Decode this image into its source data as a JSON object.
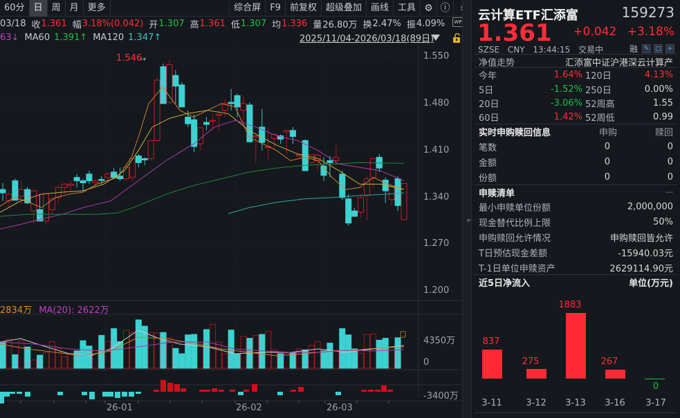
{
  "toolbar": {
    "periods": [
      "60分",
      "日",
      "周",
      "月",
      "更多"
    ],
    "active_period": "日",
    "tools": [
      "综合屏",
      "F9",
      "前复权",
      "超级叠加",
      "画线",
      "工具"
    ],
    "icons": [
      "gear-icon",
      "help-icon",
      "chevron-right-icon"
    ]
  },
  "quote_bar": {
    "date_partial": "03/18",
    "close_label": "收",
    "close": "1.361",
    "range_label": "幅",
    "range": "3.18%(0.042)",
    "open_label": "开",
    "open": "1.307",
    "high_label": "高",
    "high": "1.361",
    "low_label": "低",
    "low": "1.307",
    "avg_label": "均",
    "avg": "1.336",
    "volume_label": "量",
    "volume": "26.80万",
    "turnover_label": "换",
    "turnover": "2.47%",
    "amplitude_label": "振",
    "amplitude": "4.09%"
  },
  "ma_bar": {
    "ma_partial": "63↓",
    "ma60_label": "MA60",
    "ma60": "1.391↑",
    "ma120_label": "MA120",
    "ma120": "1.347↑",
    "date_range": "2025/11/04-2026/03/18(89日)"
  },
  "price_chart": {
    "max_marker": "1.546",
    "y_ticks": [
      "1.550",
      "1.480",
      "1.410",
      "1.340",
      "1.270",
      "1.200"
    ]
  },
  "volume_chart": {
    "ma5_partial": "2834万",
    "ma20_label": "MA(20): 2622万",
    "y_ticks": [
      "4350万",
      "0"
    ],
    "flow_tick": "-3400万"
  },
  "x_axis": {
    "labels": [
      "26-01",
      "26-02",
      "26-03"
    ]
  },
  "chart_data": {
    "type": "candlestick",
    "title": "云计算ETF汇添富 日K",
    "ylim": [
      1.2,
      1.55
    ],
    "y_ticks": [
      1.55,
      1.48,
      1.41,
      1.34,
      1.27,
      1.2
    ],
    "x_ticks": [
      "26-01",
      "26-02",
      "26-03"
    ],
    "max_annotation": 1.546,
    "last": {
      "open": 1.307,
      "high": 1.361,
      "low": 1.307,
      "close": 1.361
    }
  },
  "right_panel": {
    "name": "云计算ETF汇添富",
    "code": "159273",
    "price": "1.361",
    "change": "+0.042",
    "change_pct": "+3.18%",
    "exchange": "SZSE",
    "currency": "CNY",
    "time": "13:44:15",
    "status": "交易中",
    "margin_label": "融",
    "nav_header": "净值走势",
    "index_name": "汇添富中证沪港深云计算产",
    "nav_rows": [
      {
        "k1": "今年",
        "v1": "1.64%",
        "c1": "red",
        "k2": "120日",
        "v2": "4.13%",
        "c2": "red"
      },
      {
        "k1": "5日",
        "v1": "-1.52%",
        "c1": "green",
        "k2": "250日",
        "v2": "0.00%",
        "c2": "white"
      },
      {
        "k1": "20日",
        "v1": "-3.06%",
        "c1": "green",
        "k2": "52周高",
        "v2": "1.55",
        "c2": "white"
      },
      {
        "k1": "60日",
        "v1": "1.42%",
        "c1": "red",
        "k2": "52周低",
        "v2": "0.99",
        "c2": "white"
      }
    ],
    "realtime": {
      "header": "实时申购赎回信息",
      "col1": "申购",
      "col2": "赎回",
      "rows": [
        {
          "k": "笔数",
          "a": "0",
          "b": "0"
        },
        {
          "k": "金额",
          "a": "0",
          "b": "0"
        },
        {
          "k": "份额",
          "a": "0",
          "b": "0"
        }
      ]
    },
    "list": {
      "header": "申赎清单",
      "more": "···",
      "rows": [
        {
          "k": "最小申赎单位份额",
          "v": "2,000,000"
        },
        {
          "k": "现金替代比例上限",
          "v": "50%"
        },
        {
          "k": "申购赎回允许情况",
          "v": "申购赎回皆允许"
        },
        {
          "k": "T日预估现金差额",
          "v": "-15940.03元"
        },
        {
          "k": "T-1日单位申赎资产",
          "v": "2629114.90元"
        }
      ]
    },
    "flow": {
      "header": "近5日净流入",
      "unit": "单位(万元)",
      "items": [
        {
          "date": "3-11",
          "value": "837"
        },
        {
          "date": "3-12",
          "value": "275"
        },
        {
          "date": "3-13",
          "value": "1883"
        },
        {
          "date": "3-16",
          "value": "267"
        },
        {
          "date": "3-17",
          "value": "0"
        }
      ]
    }
  }
}
